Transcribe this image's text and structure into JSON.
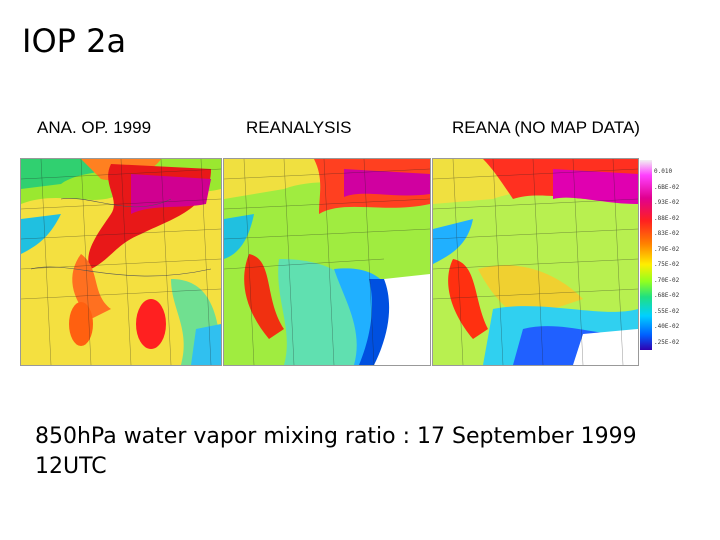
{
  "slide": {
    "title": "IOP 2a",
    "caption": "850hPa water vapor mixing ratio : 17 September 1999 12UTC"
  },
  "panels": [
    {
      "label": "ANA. OP. 1999"
    },
    {
      "label": "REANALYSIS"
    },
    {
      "label": "REANA (NO MAP DATA)"
    }
  ],
  "colorbar": {
    "tick_labels": [
      "0.010",
      ".6BE-02",
      ".93E-02",
      ".88E-02",
      ".83E-02",
      ".79E-02",
      ".75E-02",
      ".70E-02",
      ".68E-02",
      ".55E-02",
      ".40E-02",
      ".25E-02"
    ]
  },
  "colors": {
    "low": "#0040ff",
    "mid": "#ffee00",
    "high": "#ff1010",
    "top": "#e000c0"
  }
}
